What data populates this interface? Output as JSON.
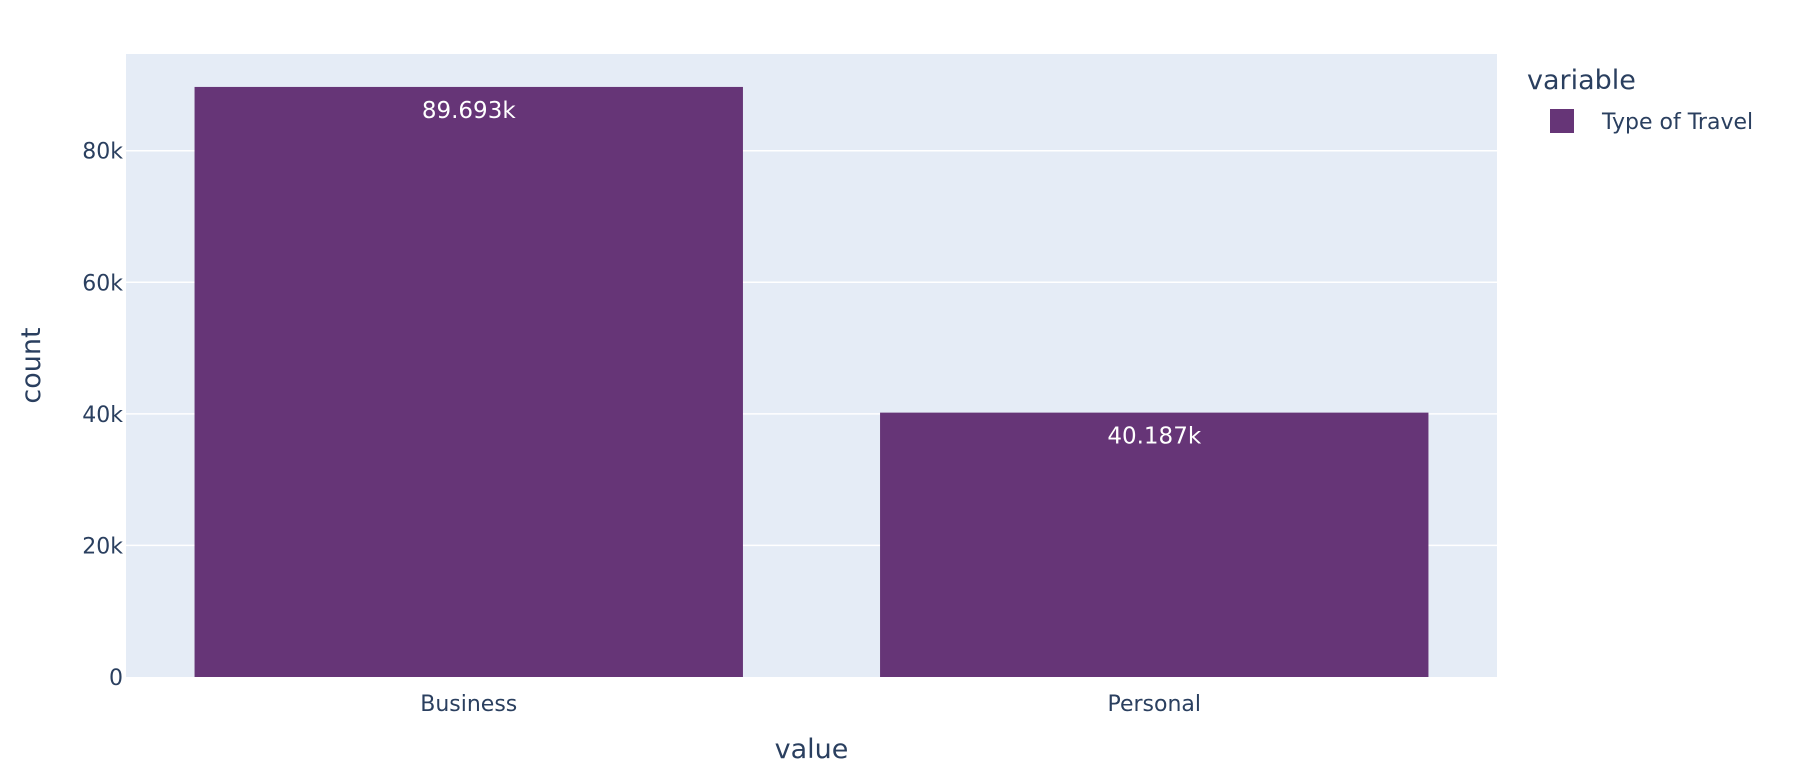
{
  "chart_data": {
    "type": "bar",
    "title": "",
    "xlabel": "value",
    "ylabel": "count",
    "categories": [
      "Business",
      "Personal"
    ],
    "series": [
      {
        "name": "Type of Travel",
        "values": [
          89693,
          40187
        ],
        "data_labels": [
          "89.693k",
          "40.187k"
        ],
        "color": "#663577"
      }
    ],
    "ylim": [
      0,
      94700
    ],
    "y_ticks": [
      {
        "value": 0,
        "label": "0"
      },
      {
        "value": 20000,
        "label": "20k"
      },
      {
        "value": 40000,
        "label": "40k"
      },
      {
        "value": 60000,
        "label": "60k"
      },
      {
        "value": 80000,
        "label": "80k"
      }
    ],
    "legend": {
      "title": "variable",
      "position": "right"
    },
    "grid": true,
    "colors": {
      "plot_background": "#e5ecf6",
      "grid": "#ffffff",
      "text": "#2a3f5f",
      "data_label": "#ffffff"
    }
  }
}
